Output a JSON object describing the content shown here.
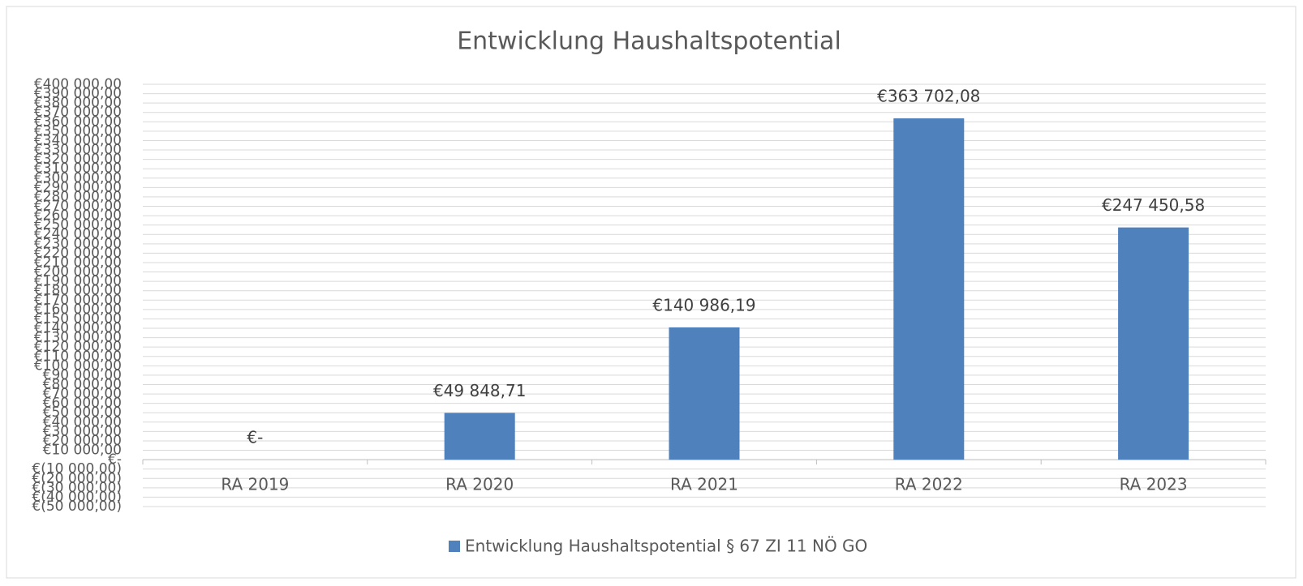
{
  "chart_data": {
    "type": "bar",
    "title": "Entwicklung Haushaltspotential",
    "categories": [
      "RA 2019",
      "RA 2020",
      "RA 2021",
      "RA 2022",
      "RA 2023"
    ],
    "series": [
      {
        "name": "Entwicklung Haushaltspotential § 67 ZI 11 NÖ GO",
        "color": "#4f81bd",
        "values": [
          0,
          49848.71,
          140986.19,
          363702.08,
          247450.58
        ],
        "value_labels": [
          "€-",
          "€49 848,71",
          "€140 986,19",
          "€363 702,08",
          "€247 450,58"
        ]
      }
    ],
    "ylim": [
      -50000,
      400000
    ],
    "yticks": [
      {
        "value": -50000,
        "label": "€(50 000,00)"
      },
      {
        "value": -40000,
        "label": "€(40 000,00)"
      },
      {
        "value": -30000,
        "label": "€(30 000,00)"
      },
      {
        "value": -20000,
        "label": "€(20 000,00)"
      },
      {
        "value": -10000,
        "label": "€(10 000,00)"
      },
      {
        "value": 0,
        "label": "€-"
      },
      {
        "value": 10000,
        "label": "€10 000,00"
      },
      {
        "value": 20000,
        "label": "€20 000,00"
      },
      {
        "value": 30000,
        "label": "€30 000,00"
      },
      {
        "value": 40000,
        "label": "€40 000,00"
      },
      {
        "value": 50000,
        "label": "€50 000,00"
      },
      {
        "value": 60000,
        "label": "€60 000,00"
      },
      {
        "value": 70000,
        "label": "€70 000,00"
      },
      {
        "value": 80000,
        "label": "€80 000,00"
      },
      {
        "value": 90000,
        "label": "€90 000,00"
      },
      {
        "value": 100000,
        "label": "€100 000,00"
      },
      {
        "value": 110000,
        "label": "€110 000,00"
      },
      {
        "value": 120000,
        "label": "€120 000,00"
      },
      {
        "value": 130000,
        "label": "€130 000,00"
      },
      {
        "value": 140000,
        "label": "€140 000,00"
      },
      {
        "value": 150000,
        "label": "€150 000,00"
      },
      {
        "value": 160000,
        "label": "€160 000,00"
      },
      {
        "value": 170000,
        "label": "€170 000,00"
      },
      {
        "value": 180000,
        "label": "€180 000,00"
      },
      {
        "value": 190000,
        "label": "€190 000,00"
      },
      {
        "value": 200000,
        "label": "€200 000,00"
      },
      {
        "value": 210000,
        "label": "€210 000,00"
      },
      {
        "value": 220000,
        "label": "€220 000,00"
      },
      {
        "value": 230000,
        "label": "€230 000,00"
      },
      {
        "value": 240000,
        "label": "€240 000,00"
      },
      {
        "value": 250000,
        "label": "€250 000,00"
      },
      {
        "value": 260000,
        "label": "€260 000,00"
      },
      {
        "value": 270000,
        "label": "€270 000,00"
      },
      {
        "value": 280000,
        "label": "€280 000,00"
      },
      {
        "value": 290000,
        "label": "€290 000,00"
      },
      {
        "value": 300000,
        "label": "€300 000,00"
      },
      {
        "value": 310000,
        "label": "€310 000,00"
      },
      {
        "value": 320000,
        "label": "€320 000,00"
      },
      {
        "value": 330000,
        "label": "€330 000,00"
      },
      {
        "value": 340000,
        "label": "€340 000,00"
      },
      {
        "value": 350000,
        "label": "€350 000,00"
      },
      {
        "value": 360000,
        "label": "€360 000,00"
      },
      {
        "value": 370000,
        "label": "€370 000,00"
      },
      {
        "value": 380000,
        "label": "€380 000,00"
      },
      {
        "value": 390000,
        "label": "€390 000,00"
      },
      {
        "value": 400000,
        "label": "€400 000,00"
      }
    ],
    "grid": true,
    "legend": "bottom"
  }
}
